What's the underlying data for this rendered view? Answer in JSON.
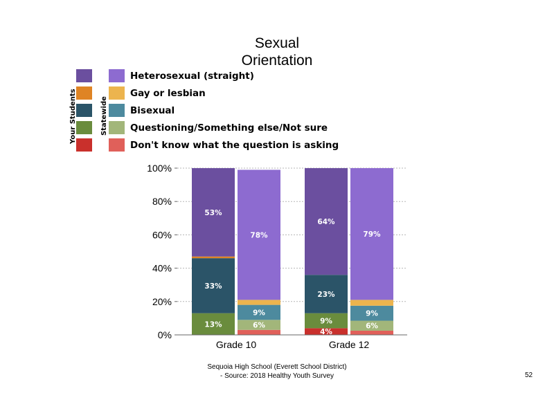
{
  "slide": {
    "title_line1": "Sexual",
    "title_line2": "Orientation",
    "footer_line1": "Sequoia High School (Everett School District)",
    "footer_line2": "- Source: 2018 Healthy Youth Survey",
    "page_number": "52"
  },
  "legend": {
    "group_your_students": "Your Students",
    "group_statewide": "Statewide",
    "items": [
      {
        "label": "Heterosexual (straight)",
        "your_color": "#6b4f9f",
        "state_color": "#8d6bd0"
      },
      {
        "label": "Gay or lesbian",
        "your_color": "#df8424",
        "state_color": "#ecb44e"
      },
      {
        "label": "Bisexual",
        "your_color": "#2b5468",
        "state_color": "#4d8a9e"
      },
      {
        "label": "Questioning/Something else/Not sure",
        "your_color": "#6a8c3d",
        "state_color": "#a2b67a"
      },
      {
        "label": "Don't know what the question is asking",
        "your_color": "#c9302c",
        "state_color": "#e0605a"
      }
    ]
  },
  "chart_data": {
    "type": "bar",
    "stacked": true,
    "categories": [
      "Grade 10",
      "Grade 12"
    ],
    "groups": [
      "Your Students",
      "Statewide"
    ],
    "ylim": [
      0,
      100
    ],
    "yticks": [
      "0%",
      "20%",
      "40%",
      "60%",
      "80%",
      "100%"
    ],
    "grid": true,
    "series": [
      {
        "name": "Don't know what the question is asking",
        "your_students": [
          0,
          4
        ],
        "statewide": [
          3,
          2.5
        ],
        "your_students_labels": [
          "",
          "4%"
        ],
        "statewide_labels": [
          "",
          ""
        ]
      },
      {
        "name": "Questioning/Something else/Not sure",
        "your_students": [
          13,
          9
        ],
        "statewide": [
          6,
          6
        ],
        "your_students_labels": [
          "13%",
          "9%"
        ],
        "statewide_labels": [
          "6%",
          "6%"
        ]
      },
      {
        "name": "Bisexual",
        "your_students": [
          33,
          23
        ],
        "statewide": [
          9,
          9
        ],
        "your_students_labels": [
          "33%",
          "23%"
        ],
        "statewide_labels": [
          "9%",
          "9%"
        ]
      },
      {
        "name": "Gay or lesbian",
        "your_students": [
          1,
          0
        ],
        "statewide": [
          3,
          3.5
        ],
        "your_students_labels": [
          "",
          ""
        ],
        "statewide_labels": [
          "",
          ""
        ]
      },
      {
        "name": "Heterosexual (straight)",
        "your_students": [
          53,
          64
        ],
        "statewide": [
          78,
          79
        ],
        "your_students_labels": [
          "53%",
          "64%"
        ],
        "statewide_labels": [
          "78%",
          "79%"
        ]
      }
    ]
  }
}
